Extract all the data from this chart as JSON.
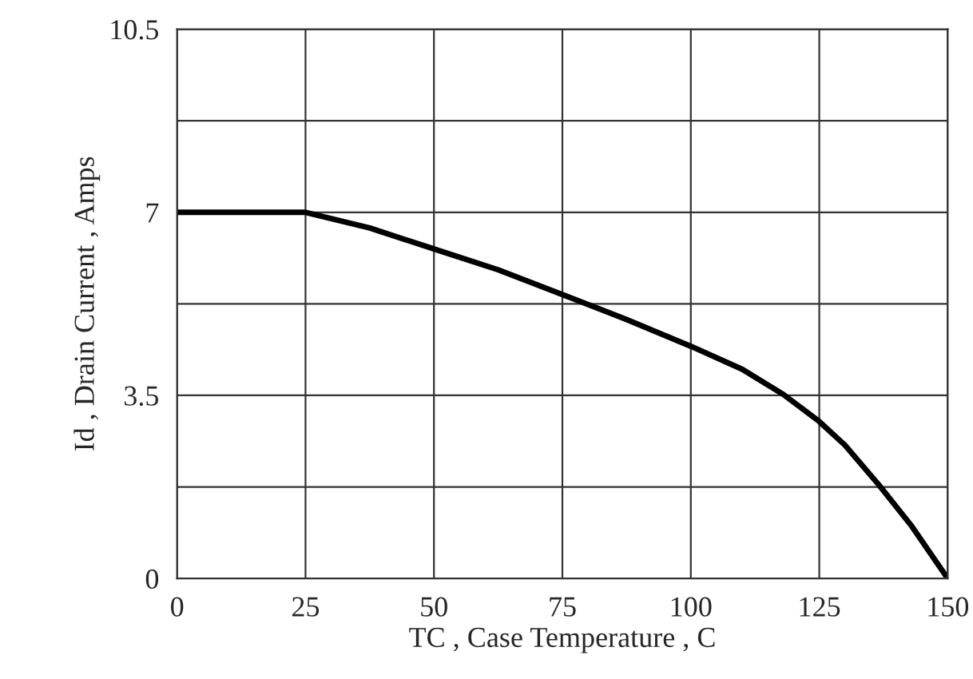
{
  "chart_data": {
    "type": "line",
    "xlabel": "TC , Case Temperature , C",
    "ylabel": "Id , Drain Current , Amps",
    "x": [
      0,
      25,
      37.5,
      50,
      62.5,
      74.4,
      87.5,
      100,
      110,
      118,
      124.9,
      130,
      136.6,
      143,
      150
    ],
    "series": [
      {
        "color": "#000000",
        "values": [
          7,
          7,
          6.7,
          6.3,
          5.9,
          5.45,
          4.95,
          4.44,
          4.0,
          3.52,
          3.01,
          2.55,
          1.79,
          1.0,
          0
        ]
      }
    ],
    "xlim": [
      0,
      150
    ],
    "xticks": [
      0,
      25,
      50,
      75,
      100,
      125,
      150
    ],
    "ylim": [
      0,
      10.5
    ],
    "yticks": [
      0,
      {
        "value": 1.75,
        "label": null
      },
      3.5,
      {
        "value": 5.25,
        "label": null
      },
      7,
      {
        "value": 8.75,
        "label": null
      },
      10.5
    ],
    "grid": true,
    "marker": "none",
    "line_style": "solid",
    "legend": false
  }
}
